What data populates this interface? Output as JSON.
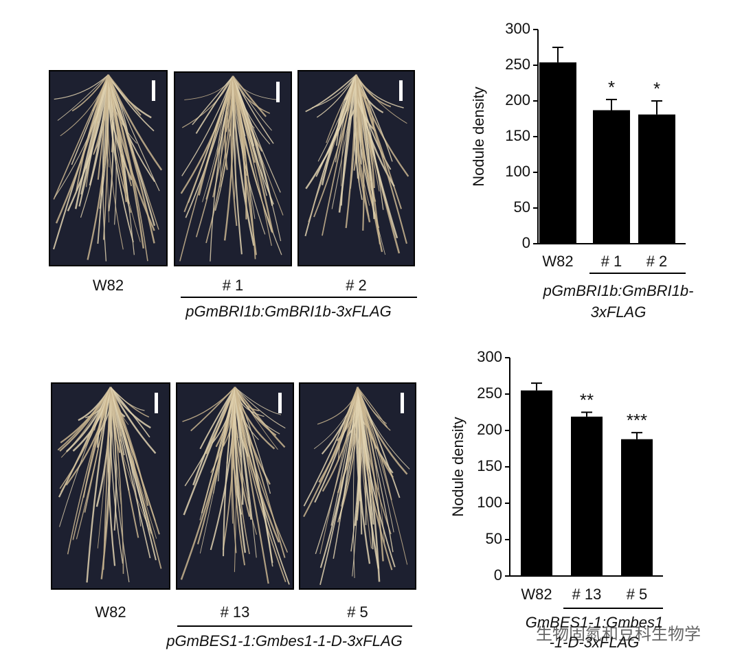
{
  "photo_panels": [
    {
      "labels": [
        "W82",
        "# 1",
        "# 2"
      ],
      "group_label": "pGmBRI1b:GmBRI1b-3xFLAG"
    },
    {
      "labels": [
        "W82",
        "# 13",
        "# 5"
      ],
      "group_label": "pGmBES1-1:Gmbes1-1-D-3xFLAG"
    }
  ],
  "chart_data": [
    {
      "type": "bar",
      "y_label": "Nodule density",
      "categories": [
        "W82",
        "# 1",
        "# 2"
      ],
      "values": [
        254,
        187,
        181
      ],
      "errors": [
        21,
        15,
        19
      ],
      "annotations": [
        null,
        "*",
        "*"
      ],
      "group_label": [
        "pGmBRI1b:GmBRI1b-",
        "3xFLAG"
      ],
      "color": "#000000",
      "ylim": [
        0,
        300
      ],
      "yticks": [
        0,
        50,
        100,
        150,
        200,
        250,
        300
      ]
    },
    {
      "type": "bar",
      "y_label": "Nodule density",
      "categories": [
        "W82",
        "# 13",
        "# 5"
      ],
      "values": [
        255,
        219,
        188
      ],
      "errors": [
        10,
        6,
        9
      ],
      "annotations": [
        null,
        "**",
        "***"
      ],
      "group_label": [
        "GmBES1-1:Gmbes1",
        "-1-D-3xFLAG"
      ],
      "color": "#000000",
      "ylim": [
        0,
        300
      ],
      "yticks": [
        0,
        50,
        100,
        150,
        200,
        250,
        300
      ]
    }
  ],
  "watermark": "生物固氮和豆科生物学"
}
